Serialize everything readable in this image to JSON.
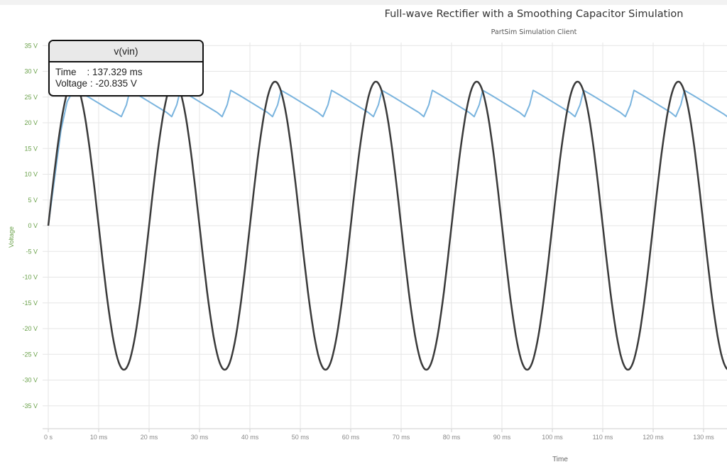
{
  "title": "Full-wave Rectifier with a Smoothing Capacitor Simulation",
  "subtitle": "PartSim Simulation Client",
  "tooltip": {
    "series_name": "v(vin)",
    "time_label": "Time    ",
    "time_value": ": 137.329 ms",
    "voltage_label": "Voltage",
    "voltage_value": ": -20.835 V"
  },
  "colors": {
    "vin": "#3a3a3a",
    "vout": "#7ab4de",
    "axis_text": "#6aa14a",
    "grid": "#e6e6e6",
    "x_tick_text": "#888888"
  },
  "chart_data": {
    "type": "line",
    "title": "Full-wave Rectifier with a Smoothing Capacitor Simulation",
    "subtitle": "PartSim Simulation Client",
    "xlabel": "Time",
    "ylabel": "Voltage",
    "x_unit": "ms",
    "y_unit": "V",
    "xlim": [
      0,
      135
    ],
    "ylim": [
      -40,
      35
    ],
    "grid": true,
    "x_ticks": [
      "0 s",
      "10 ms",
      "20 ms",
      "30 ms",
      "40 ms",
      "50 ms",
      "60 ms",
      "70 ms",
      "80 ms",
      "90 ms",
      "100 ms",
      "110 ms",
      "120 ms",
      "130 ms"
    ],
    "y_ticks": [
      "35 V",
      "30 V",
      "25 V",
      "20 V",
      "15 V",
      "10 V",
      "5 V",
      "0 V",
      "-5 V",
      "-10 V",
      "-15 V",
      "-20 V",
      "-25 V",
      "-30 V",
      "-35 V"
    ],
    "series": [
      {
        "name": "v(vin)",
        "color": "#3a3a3a",
        "x": [
          0,
          1.25,
          2.5,
          3.75,
          5,
          6.25,
          7.5,
          8.75,
          10,
          11.25,
          12.5,
          13.75,
          15,
          16.25,
          17.5,
          18.75,
          20,
          21.25,
          22.5,
          23.75,
          25,
          26.25,
          27.5,
          28.75,
          30,
          31.25,
          32.5,
          33.75,
          35,
          36.25,
          37.5,
          38.75,
          40,
          41.25,
          42.5,
          43.75,
          45,
          46.25,
          47.5,
          48.75,
          50,
          51.25,
          52.5,
          53.75,
          55,
          56.25,
          57.5,
          58.75,
          60,
          61.25,
          62.5,
          63.75,
          65,
          66.25,
          67.5,
          68.75,
          70,
          71.25,
          72.5,
          73.75,
          75,
          76.25,
          77.5,
          78.75,
          80,
          81.25,
          82.5,
          83.75,
          85,
          86.25,
          87.5,
          88.75,
          90,
          91.25,
          92.5,
          93.75,
          95,
          96.25,
          97.5,
          98.75,
          100,
          101.25,
          102.5,
          103.75,
          105,
          106.25,
          107.5,
          108.75,
          110,
          111.25,
          112.5,
          113.75,
          115,
          116.25,
          117.5,
          118.75,
          120,
          121.25,
          122.5,
          123.75,
          125,
          126.25,
          127.5,
          128.75,
          130,
          131.25,
          132.5,
          133.75,
          135
        ],
        "y": [
          0,
          10.7,
          19.8,
          25.9,
          28,
          25.9,
          19.8,
          10.7,
          0,
          -10.7,
          -19.8,
          -25.9,
          -28,
          -25.9,
          -19.8,
          -10.7,
          0,
          10.7,
          19.8,
          25.9,
          28,
          25.9,
          19.8,
          10.7,
          0,
          -10.7,
          -19.8,
          -25.9,
          -28,
          -25.9,
          -19.8,
          -10.7,
          0,
          10.7,
          19.8,
          25.9,
          28,
          25.9,
          19.8,
          10.7,
          0,
          -10.7,
          -19.8,
          -25.9,
          -28,
          -25.9,
          -19.8,
          -10.7,
          0,
          10.7,
          19.8,
          25.9,
          28,
          25.9,
          19.8,
          10.7,
          0,
          -10.7,
          -19.8,
          -25.9,
          -28,
          -25.9,
          -19.8,
          -10.7,
          0,
          10.7,
          19.8,
          25.9,
          28,
          25.9,
          19.8,
          10.7,
          0,
          -10.7,
          -19.8,
          -25.9,
          -28,
          -25.9,
          -19.8,
          -10.7,
          0,
          10.7,
          19.8,
          25.9,
          28,
          25.9,
          19.8,
          10.7,
          0,
          -10.7,
          -19.8,
          -25.9,
          -28,
          -25.9,
          -19.8,
          -10.7,
          0,
          10.7,
          19.8,
          25.9,
          28,
          25.9,
          19.8,
          10.7,
          0,
          -10.7,
          -19.8,
          -25.9,
          -28
        ]
      },
      {
        "name": "",
        "color": "#7ab4de",
        "x": [
          0,
          1.25,
          2.5,
          3.75,
          5,
          6,
          8,
          10,
          12,
          13.5,
          14.5,
          15.5,
          16.2,
          18,
          20,
          22,
          23.5,
          24.5,
          25.5,
          26.2,
          28,
          30,
          32,
          33.5,
          34.5,
          35.5,
          36.2,
          38,
          40,
          42,
          43.5,
          44.5,
          45.5,
          46.2,
          48,
          50,
          52,
          53.5,
          54.5,
          55.5,
          56.2,
          58,
          60,
          62,
          63.5,
          64.5,
          65.5,
          66.2,
          68,
          70,
          72,
          73.5,
          74.5,
          75.5,
          76.2,
          78,
          80,
          82,
          83.5,
          84.5,
          85.5,
          86.2,
          88,
          90,
          92,
          93.5,
          94.5,
          95.5,
          96.2,
          98,
          100,
          102,
          103.5,
          104.5,
          105.5,
          106.2,
          108,
          110,
          112,
          113.5,
          114.5,
          115.5,
          116.2,
          118,
          120,
          122,
          123.5,
          124.5,
          125.5,
          126.2,
          128,
          130,
          132,
          134,
          135
        ],
        "y": [
          0,
          9.2,
          18.5,
          24.1,
          26.4,
          26.1,
          25.0,
          23.8,
          22.6,
          21.8,
          21.2,
          23.5,
          26.3,
          25.3,
          24.1,
          22.9,
          22.0,
          21.2,
          23.5,
          26.3,
          25.3,
          24.1,
          22.9,
          22.0,
          21.2,
          23.5,
          26.3,
          25.3,
          24.1,
          22.9,
          22.0,
          21.2,
          23.5,
          26.3,
          25.3,
          24.1,
          22.9,
          22.0,
          21.2,
          23.5,
          26.3,
          25.3,
          24.1,
          22.9,
          22.0,
          21.2,
          23.5,
          26.3,
          25.3,
          24.1,
          22.9,
          22.0,
          21.2,
          23.5,
          26.3,
          25.3,
          24.1,
          22.9,
          22.0,
          21.2,
          23.5,
          26.3,
          25.3,
          24.1,
          22.9,
          22.0,
          21.2,
          23.5,
          26.3,
          25.3,
          24.1,
          22.9,
          22.0,
          21.2,
          23.5,
          26.3,
          25.3,
          24.1,
          22.9,
          22.0,
          21.2,
          23.5,
          26.3,
          25.3,
          24.1,
          22.9,
          22.0,
          21.2,
          23.5,
          26.3,
          25.3,
          24.1,
          22.9,
          21.7,
          21.0
        ]
      }
    ]
  }
}
